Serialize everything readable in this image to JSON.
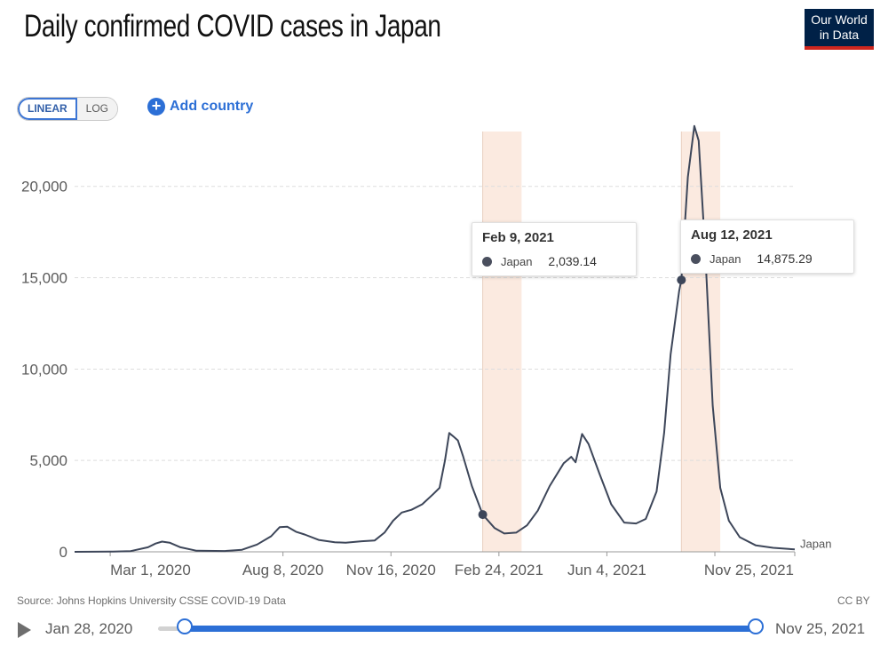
{
  "header": {
    "title": "Daily confirmed COVID cases in Japan",
    "logo_line1": "Our World",
    "logo_line2": "in Data"
  },
  "controls": {
    "linear_label": "LINEAR",
    "log_label": "LOG",
    "add_country_label": "Add country"
  },
  "footer": {
    "source": "Source: Johns Hopkins University CSSE COVID-19 Data",
    "license": "CC BY"
  },
  "timeline": {
    "start_label": "Jan 28, 2020",
    "end_label": "Nov 25, 2021"
  },
  "tooltips": [
    {
      "date": "Feb 9, 2021",
      "series": "Japan",
      "value": "2,039.14"
    },
    {
      "date": "Aug 12, 2021",
      "series": "Japan",
      "value": "14,875.29"
    }
  ],
  "colors": {
    "line": "#3d4659",
    "highlight_band": "#fbeae0",
    "accent": "#2c6fd6"
  },
  "chart_data": {
    "type": "line",
    "title": "Daily confirmed COVID cases in Japan",
    "xlabel": "",
    "ylabel": "",
    "ylim": [
      0,
      23000
    ],
    "y_ticks": [
      0,
      5000,
      10000,
      15000,
      20000
    ],
    "y_tick_labels": [
      "0",
      "5,000",
      "10,000",
      "15,000",
      "20,000"
    ],
    "x_ticks": [
      "2020-03-01",
      "2020-08-08",
      "2020-11-16",
      "2021-02-24",
      "2021-06-04",
      "2021-09-12",
      "2021-11-25"
    ],
    "x_tick_labels": [
      "Mar 1, 2020",
      "Aug 8, 2020",
      "Nov 16, 2020",
      "Feb 24, 2021",
      "Jun 4, 2021",
      "",
      "Nov 25, 2021"
    ],
    "xlim": [
      "2020-01-28",
      "2021-11-25"
    ],
    "grid": true,
    "highlight_bands": [
      {
        "from": "2021-02-09",
        "to": "2021-03-17"
      },
      {
        "from": "2021-08-12",
        "to": "2021-09-17"
      }
    ],
    "series": [
      {
        "name": "Japan",
        "points": [
          [
            "2020-01-28",
            0
          ],
          [
            "2020-03-01",
            10
          ],
          [
            "2020-03-20",
            40
          ],
          [
            "2020-04-05",
            250
          ],
          [
            "2020-04-12",
            450
          ],
          [
            "2020-04-18",
            560
          ],
          [
            "2020-04-25",
            500
          ],
          [
            "2020-05-05",
            250
          ],
          [
            "2020-05-20",
            60
          ],
          [
            "2020-06-15",
            45
          ],
          [
            "2020-07-01",
            110
          ],
          [
            "2020-07-15",
            400
          ],
          [
            "2020-07-28",
            850
          ],
          [
            "2020-08-05",
            1350
          ],
          [
            "2020-08-12",
            1370
          ],
          [
            "2020-08-20",
            1100
          ],
          [
            "2020-08-28",
            950
          ],
          [
            "2020-09-10",
            650
          ],
          [
            "2020-09-25",
            520
          ],
          [
            "2020-10-05",
            500
          ],
          [
            "2020-10-20",
            580
          ],
          [
            "2020-11-01",
            620
          ],
          [
            "2020-11-10",
            1050
          ],
          [
            "2020-11-18",
            1700
          ],
          [
            "2020-11-26",
            2150
          ],
          [
            "2020-12-05",
            2300
          ],
          [
            "2020-12-15",
            2600
          ],
          [
            "2020-12-25",
            3150
          ],
          [
            "2020-12-31",
            3500
          ],
          [
            "2021-01-05",
            5000
          ],
          [
            "2021-01-09",
            6500
          ],
          [
            "2021-01-13",
            6300
          ],
          [
            "2021-01-17",
            6100
          ],
          [
            "2021-01-22",
            5200
          ],
          [
            "2021-01-30",
            3600
          ],
          [
            "2021-02-09",
            2039
          ],
          [
            "2021-02-20",
            1300
          ],
          [
            "2021-03-01",
            1000
          ],
          [
            "2021-03-12",
            1050
          ],
          [
            "2021-03-22",
            1450
          ],
          [
            "2021-04-01",
            2250
          ],
          [
            "2021-04-12",
            3600
          ],
          [
            "2021-04-25",
            4850
          ],
          [
            "2021-05-02",
            5200
          ],
          [
            "2021-05-06",
            4900
          ],
          [
            "2021-05-12",
            6450
          ],
          [
            "2021-05-18",
            5900
          ],
          [
            "2021-05-28",
            4300
          ],
          [
            "2021-06-08",
            2600
          ],
          [
            "2021-06-20",
            1600
          ],
          [
            "2021-07-01",
            1550
          ],
          [
            "2021-07-10",
            1800
          ],
          [
            "2021-07-20",
            3300
          ],
          [
            "2021-07-27",
            6500
          ],
          [
            "2021-08-02",
            10800
          ],
          [
            "2021-08-10",
            14300
          ],
          [
            "2021-08-12",
            14875
          ],
          [
            "2021-08-18",
            20500
          ],
          [
            "2021-08-24",
            23300
          ],
          [
            "2021-08-28",
            22500
          ],
          [
            "2021-09-03",
            16500
          ],
          [
            "2021-09-10",
            8000
          ],
          [
            "2021-09-17",
            3500
          ],
          [
            "2021-09-25",
            1700
          ],
          [
            "2021-10-05",
            800
          ],
          [
            "2021-10-20",
            350
          ],
          [
            "2021-11-05",
            220
          ],
          [
            "2021-11-25",
            130
          ]
        ]
      }
    ]
  }
}
